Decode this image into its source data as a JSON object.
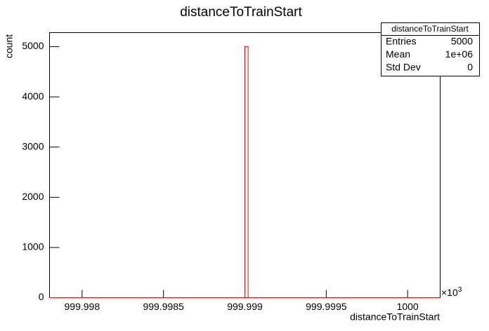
{
  "chart_data": {
    "type": "histogram",
    "title": "distanceToTrainStart",
    "x_label": "distanceToTrainStart",
    "y_label": "count",
    "x_multiplier": {
      "base": "×10",
      "exponent": "3"
    },
    "bins": [
      999.9978,
      999.999,
      999.99902,
      1000.0002
    ],
    "counts": [
      0,
      5000,
      0
    ],
    "color": "#ff0000",
    "xlim": [
      999.9978,
      1000.0002
    ],
    "xticks": [
      999.998,
      999.9985,
      999.999,
      999.9995,
      1000
    ],
    "ylim": [
      0,
      5280
    ],
    "yticks": [
      0,
      1000,
      2000,
      3000,
      4000,
      5000
    ],
    "grid": false,
    "stats": {
      "title": "distanceToTrainStart",
      "rows": [
        [
          "Entries",
          "5000"
        ],
        [
          "Mean",
          "1e+06"
        ],
        [
          "Std Dev",
          "0"
        ]
      ]
    }
  }
}
